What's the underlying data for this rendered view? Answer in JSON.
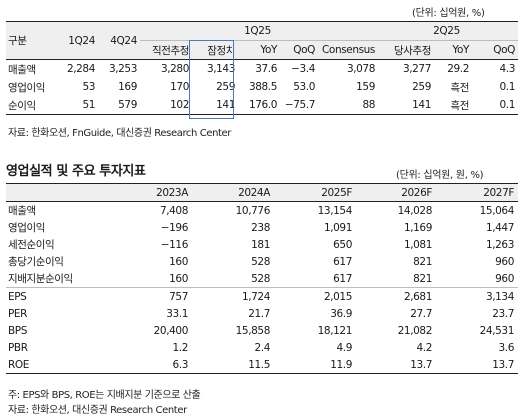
{
  "table1": {
    "unit": "(단위: 십억원, %)",
    "group_headers": {
      "q1_25": "1Q25",
      "q2_25": "2Q25"
    },
    "columns": [
      "구분",
      "1Q24",
      "4Q24",
      "직전추정",
      "잠정치",
      "YoY",
      "QoQ",
      "Consensus",
      "당사추정",
      "YoY",
      "QoQ"
    ],
    "rows": [
      [
        "매출액",
        "2,284",
        "3,253",
        "3,280",
        "3,143",
        "37.6",
        "−3.4",
        "3,078",
        "3,277",
        "29.2",
        "4.3"
      ],
      [
        "영업이익",
        "53",
        "169",
        "170",
        "259",
        "388.5",
        "53.0",
        "159",
        "259",
        "흑전",
        "0.1"
      ],
      [
        "순이익",
        "51",
        "579",
        "102",
        "141",
        "176.0",
        "−75.7",
        "88",
        "141",
        "흑전",
        "0.1"
      ]
    ],
    "source": "자료: 한화오션, FnGuide, 대신증권 Research Center",
    "highlight_color": "#4a78b8"
  },
  "table2": {
    "title": "영업실적 및 주요 투자지표",
    "unit": "(단위: 십억원, 원, %)",
    "columns": [
      "",
      "2023A",
      "2024A",
      "2025F",
      "2026F",
      "2027F"
    ],
    "rows": [
      [
        "매출액",
        "7,408",
        "10,776",
        "13,154",
        "14,028",
        "15,064"
      ],
      [
        "영업이익",
        "−196",
        "238",
        "1,091",
        "1,169",
        "1,447"
      ],
      [
        "세전순이익",
        "−116",
        "181",
        "650",
        "1,081",
        "1,263"
      ],
      [
        "총당기순이익",
        "160",
        "528",
        "617",
        "821",
        "960"
      ],
      [
        "지배지분순이익",
        "160",
        "528",
        "617",
        "821",
        "960"
      ],
      [
        "EPS",
        "757",
        "1,724",
        "2,015",
        "2,681",
        "3,134"
      ],
      [
        "PER",
        "33.1",
        "21.7",
        "36.9",
        "27.7",
        "23.7"
      ],
      [
        "BPS",
        "20,400",
        "15,858",
        "18,121",
        "21,082",
        "24,531"
      ],
      [
        "PBR",
        "1.2",
        "2.4",
        "4.9",
        "4.2",
        "3.6"
      ],
      [
        "ROE",
        "6.3",
        "11.5",
        "11.9",
        "13.7",
        "13.7"
      ]
    ],
    "note": "주: EPS와 BPS, ROE는 지배지분 기준으로 산출",
    "source": "자료: 한화오션, 대신증권 Research Center"
  }
}
